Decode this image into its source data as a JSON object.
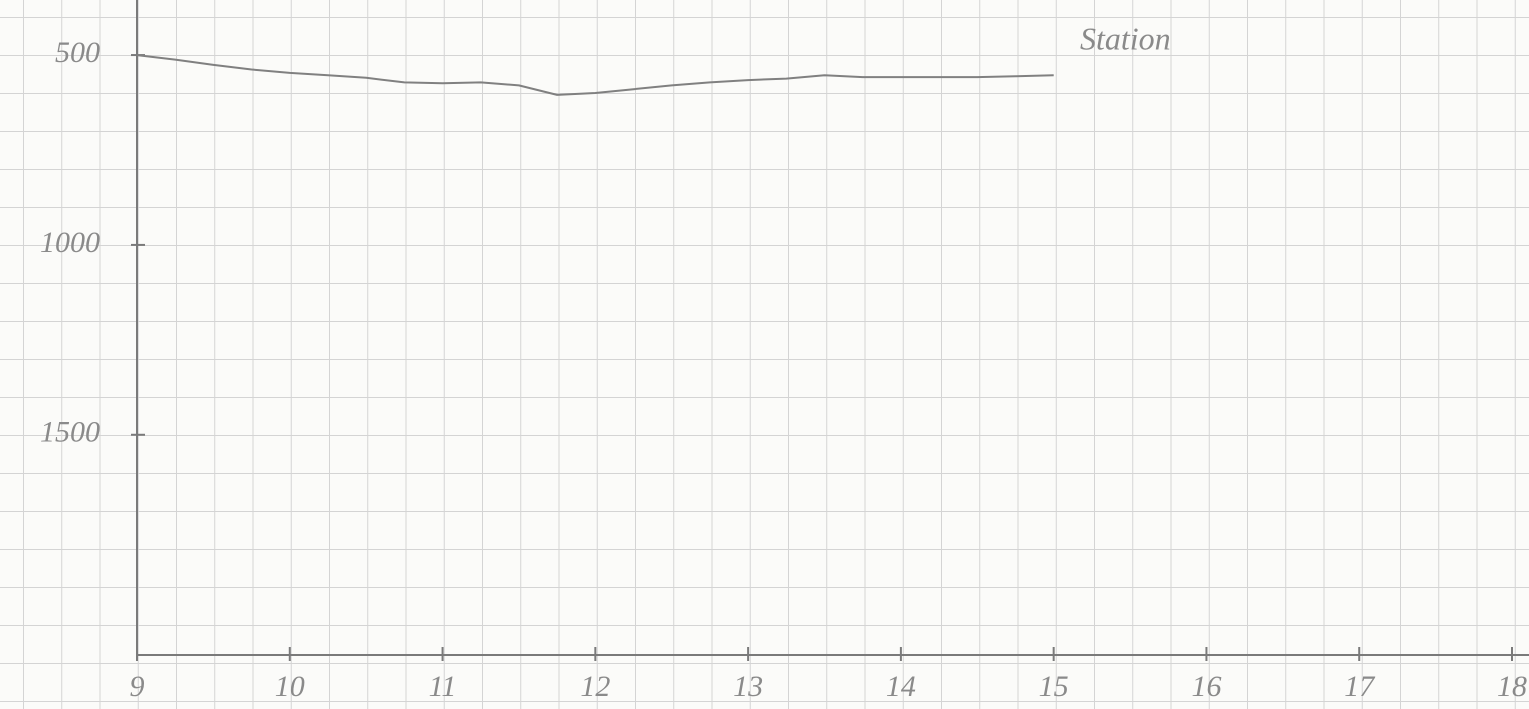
{
  "chart_data": {
    "type": "line",
    "annotation": "Station",
    "x": [
      9,
      9.25,
      9.5,
      9.75,
      10,
      10.25,
      10.5,
      10.75,
      11,
      11.25,
      11.5,
      11.75,
      12,
      12.25,
      12.5,
      12.75,
      13,
      13.25,
      13.5,
      13.75,
      14,
      14.25,
      14.5,
      14.75,
      15
    ],
    "values": [
      500,
      512,
      526,
      538,
      547,
      553,
      560,
      572,
      574,
      572,
      580,
      605,
      600,
      590,
      580,
      572,
      566,
      562,
      553,
      558,
      558,
      558,
      558,
      556,
      553
    ],
    "color": "#808080",
    "xlim": [
      9,
      18
    ],
    "xticks": [
      9,
      10,
      11,
      12,
      13,
      14,
      15,
      16,
      17,
      18
    ],
    "ylim": [
      2080,
      355
    ],
    "yticks": [
      500,
      1000,
      1500
    ]
  }
}
